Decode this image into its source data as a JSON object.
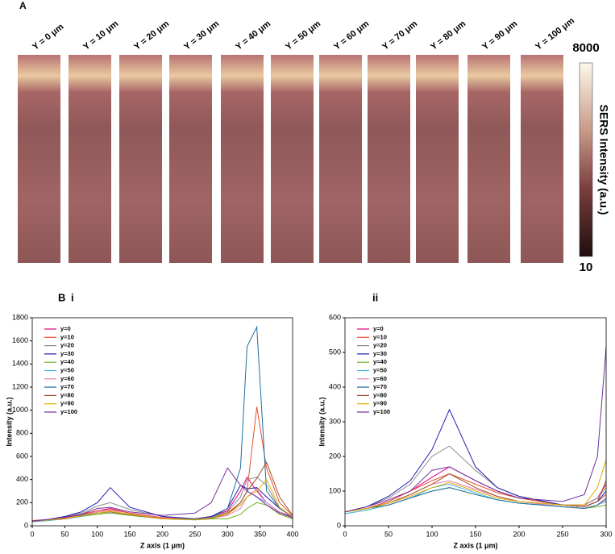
{
  "panel_a": {
    "label": "A",
    "columns": [
      "Y = 0 μm",
      "Y = 10 μm",
      "Y = 20 μm",
      "Y = 30 μm",
      "Y = 40 μm",
      "Y = 50 μm",
      "Y = 60 μm",
      "Y = 70 μm",
      "Y = 80 μm",
      "Y = 90 μm",
      "Y = 100 μm"
    ],
    "colorbar": {
      "label": "SERS Intensity (a.u.)",
      "clim": [
        10,
        8000
      ],
      "ticks": [
        8000,
        10
      ]
    }
  },
  "panel_b_label": "B",
  "chart_data": [
    {
      "type": "line",
      "title": "i",
      "x_label": "Z axis (1 μm)",
      "y_label": "Intensity (a.u.)",
      "xlim": [
        0,
        400
      ],
      "xticks": [
        0,
        50,
        100,
        150,
        200,
        250,
        300,
        350,
        400
      ],
      "ylim": [
        0,
        1800
      ],
      "yticks": [
        0,
        200,
        400,
        600,
        800,
        1000,
        1200,
        1400,
        1600,
        1800
      ],
      "legend": "upper left",
      "x": [
        0,
        25,
        50,
        75,
        100,
        120,
        150,
        200,
        250,
        275,
        300,
        320,
        330,
        345,
        360,
        380,
        400
      ],
      "series": [
        {
          "name": "y=0",
          "color": "#e6007e",
          "values": [
            40,
            55,
            70,
            95,
            130,
            150,
            110,
            70,
            60,
            80,
            130,
            300,
            420,
            300,
            200,
            120,
            80
          ]
        },
        {
          "name": "y=10",
          "color": "#e8502a",
          "values": [
            45,
            55,
            75,
            100,
            130,
            140,
            110,
            70,
            60,
            75,
            110,
            200,
            300,
            1030,
            500,
            200,
            90
          ]
        },
        {
          "name": "y=20",
          "color": "#8c8c8c",
          "values": [
            40,
            55,
            80,
            110,
            170,
            200,
            140,
            80,
            60,
            75,
            120,
            250,
            400,
            420,
            350,
            150,
            80
          ]
        },
        {
          "name": "y=30",
          "color": "#1f1fb4",
          "values": [
            40,
            55,
            80,
            120,
            200,
            330,
            160,
            80,
            60,
            80,
            150,
            350,
            320,
            330,
            250,
            150,
            80
          ]
        },
        {
          "name": "y=40",
          "color": "#6ab023",
          "values": [
            35,
            45,
            60,
            80,
            100,
            110,
            90,
            60,
            50,
            60,
            60,
            100,
            150,
            200,
            180,
            100,
            60
          ]
        },
        {
          "name": "y=50",
          "color": "#4ab8e8",
          "values": [
            35,
            45,
            60,
            80,
            110,
            120,
            95,
            60,
            55,
            70,
            100,
            200,
            300,
            250,
            200,
            120,
            70
          ]
        },
        {
          "name": "y=60",
          "color": "#e87fb8",
          "values": [
            40,
            50,
            65,
            90,
            120,
            130,
            100,
            65,
            55,
            65,
            90,
            150,
            250,
            320,
            200,
            120,
            70
          ]
        },
        {
          "name": "y=70",
          "color": "#1f6fa0",
          "values": [
            40,
            50,
            60,
            90,
            110,
            120,
            100,
            60,
            55,
            70,
            150,
            500,
            1550,
            1720,
            300,
            150,
            80
          ]
        },
        {
          "name": "y=80",
          "color": "#a0522d",
          "values": [
            40,
            50,
            60,
            85,
            110,
            120,
            95,
            60,
            55,
            65,
            100,
            200,
            300,
            410,
            550,
            250,
            90
          ]
        },
        {
          "name": "y=90",
          "color": "#e0b000",
          "values": [
            40,
            50,
            65,
            85,
            110,
            125,
            100,
            60,
            55,
            70,
            100,
            180,
            250,
            300,
            400,
            160,
            80
          ]
        },
        {
          "name": "y=100",
          "color": "#7030a0",
          "values": [
            40,
            55,
            75,
            100,
            150,
            160,
            120,
            90,
            110,
            200,
            500,
            350,
            300,
            250,
            180,
            110,
            70
          ]
        }
      ]
    },
    {
      "type": "line",
      "title": "ii",
      "x_label": "Z axis (1 μm)",
      "y_label": "Intensity (a.u.)",
      "xlim": [
        0,
        300
      ],
      "xticks": [
        0,
        50,
        100,
        150,
        200,
        250,
        300
      ],
      "ylim": [
        0,
        600
      ],
      "yticks": [
        0,
        100,
        200,
        300,
        400,
        500,
        600
      ],
      "legend": "upper left",
      "x": [
        0,
        25,
        50,
        75,
        100,
        120,
        150,
        175,
        200,
        250,
        275,
        290,
        300
      ],
      "series": [
        {
          "name": "y=0",
          "color": "#e6007e",
          "values": [
            40,
            50,
            70,
            100,
            140,
            170,
            130,
            100,
            80,
            60,
            60,
            80,
            120
          ]
        },
        {
          "name": "y=10",
          "color": "#e8502a",
          "values": [
            40,
            50,
            70,
            100,
            130,
            150,
            120,
            95,
            80,
            60,
            55,
            70,
            90
          ]
        },
        {
          "name": "y=20",
          "color": "#8c8c8c",
          "values": [
            40,
            55,
            80,
            120,
            200,
            230,
            160,
            110,
            85,
            60,
            60,
            80,
            110
          ]
        },
        {
          "name": "y=30",
          "color": "#1f1fb4",
          "values": [
            40,
            55,
            85,
            130,
            220,
            335,
            170,
            110,
            85,
            60,
            55,
            70,
            100
          ]
        },
        {
          "name": "y=40",
          "color": "#6ab023",
          "values": [
            35,
            45,
            60,
            80,
            100,
            110,
            90,
            75,
            65,
            55,
            50,
            55,
            60
          ]
        },
        {
          "name": "y=50",
          "color": "#4ab8e8",
          "values": [
            35,
            45,
            60,
            80,
            110,
            120,
            95,
            75,
            65,
            55,
            50,
            60,
            70
          ]
        },
        {
          "name": "y=60",
          "color": "#e87fb8",
          "values": [
            40,
            50,
            65,
            90,
            120,
            130,
            105,
            85,
            70,
            55,
            50,
            60,
            75
          ]
        },
        {
          "name": "y=70",
          "color": "#1f6fa0",
          "values": [
            40,
            50,
            60,
            80,
            100,
            110,
            90,
            75,
            65,
            55,
            50,
            60,
            80
          ]
        },
        {
          "name": "y=80",
          "color": "#a0522d",
          "values": [
            40,
            50,
            65,
            90,
            120,
            150,
            110,
            85,
            70,
            60,
            55,
            70,
            130
          ]
        },
        {
          "name": "y=90",
          "color": "#e0b000",
          "values": [
            40,
            50,
            65,
            85,
            110,
            125,
            100,
            80,
            70,
            60,
            60,
            110,
            190
          ]
        },
        {
          "name": "y=100",
          "color": "#7030a0",
          "values": [
            40,
            55,
            75,
            100,
            160,
            170,
            130,
            100,
            80,
            70,
            90,
            200,
            515
          ]
        }
      ]
    }
  ]
}
